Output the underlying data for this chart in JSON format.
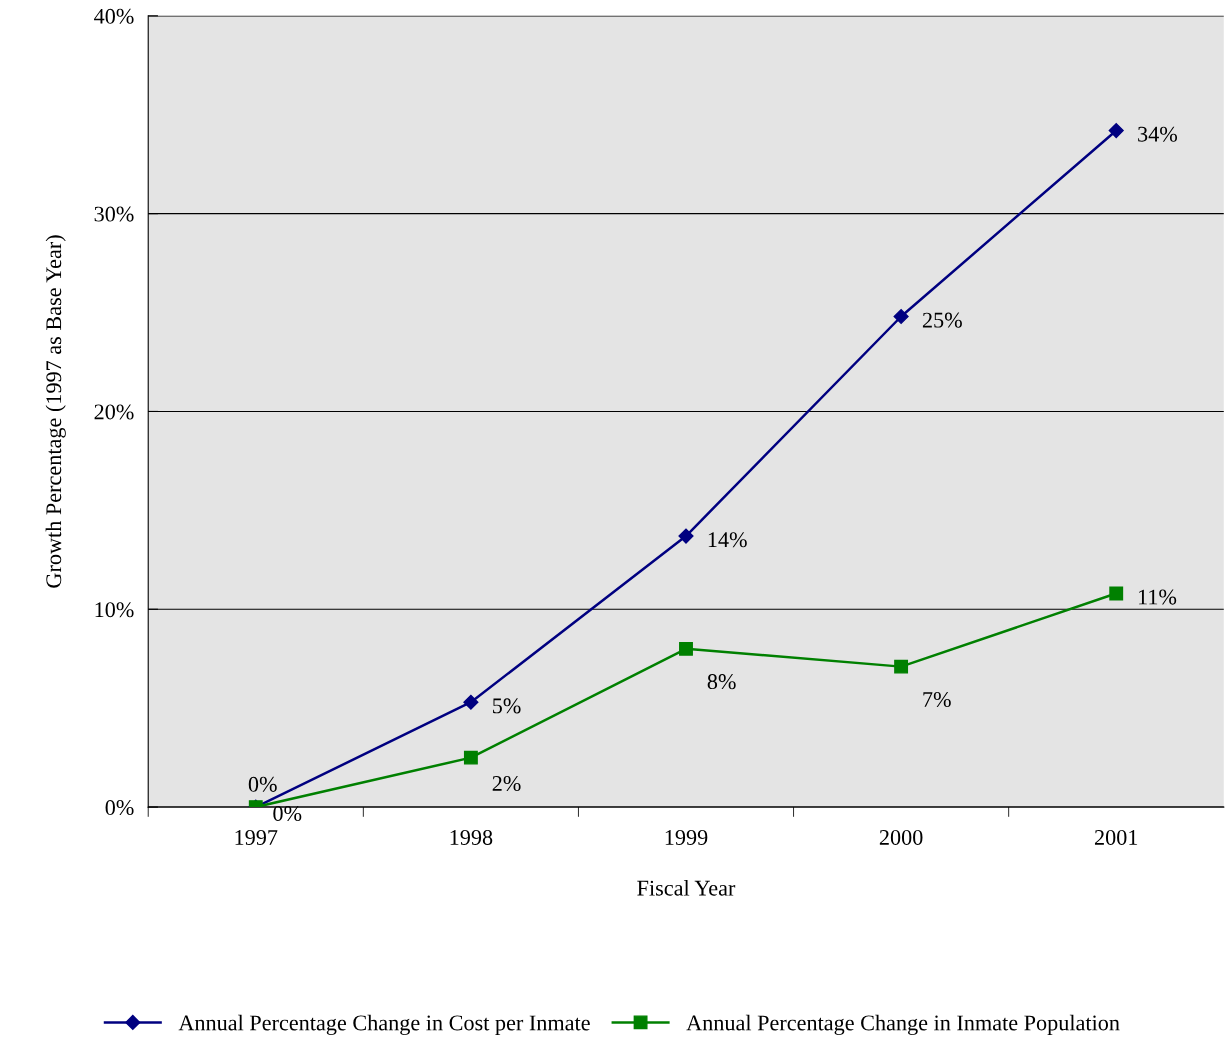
{
  "chart_data": {
    "type": "line",
    "xlabel": "Fiscal Year",
    "ylabel": "Growth Percentage (1997 as Base Year)",
    "categories": [
      "1997",
      "1998",
      "1999",
      "2000",
      "2001"
    ],
    "series": [
      {
        "name": "Annual Percentage Change in Cost per Inmate",
        "color": "#000080",
        "marker": "diamond",
        "values": [
          0,
          5.3,
          13.7,
          24.8,
          34.2
        ],
        "value_labels": [
          "0%",
          "5%",
          "14%",
          "25%",
          "34%"
        ]
      },
      {
        "name": "Annual Percentage Change in Inmate Population",
        "color": "#008000",
        "marker": "square",
        "values": [
          0,
          2.5,
          8.0,
          7.1,
          10.8
        ],
        "value_labels": [
          "0%",
          "2%",
          "8%",
          "7%",
          "11%"
        ]
      }
    ],
    "ylim": [
      0,
      40
    ],
    "yticks": [
      {
        "value": 0,
        "label": "0%"
      },
      {
        "value": 10,
        "label": "10%"
      },
      {
        "value": 20,
        "label": "20%"
      },
      {
        "value": 30,
        "label": "30%"
      },
      {
        "value": 40,
        "label": "40%"
      }
    ],
    "grid": "y",
    "legend": "bottom",
    "line_style": "solid"
  }
}
